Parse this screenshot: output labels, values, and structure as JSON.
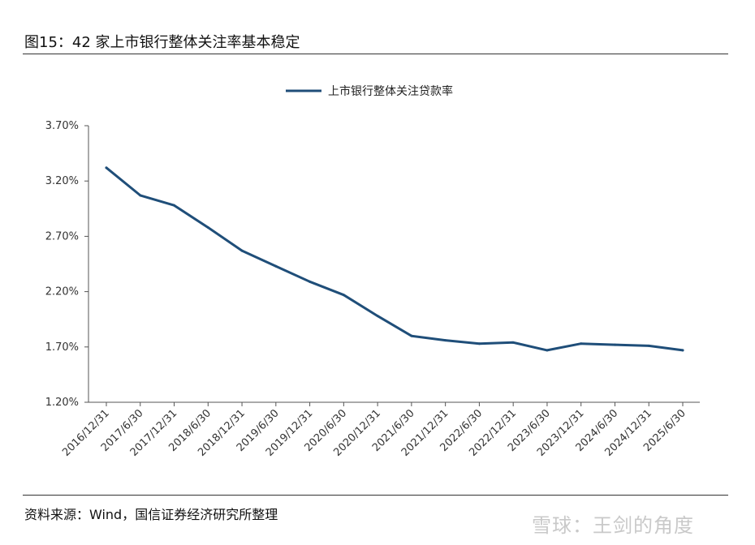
{
  "figure": {
    "title": "图15：42 家上市银行整体关注率基本稳定",
    "source": "资料来源：Wind，国信证券经济研究所整理",
    "watermark": "雪球：王剑的角度"
  },
  "chart_data": {
    "type": "line",
    "title": "",
    "xlabel": "",
    "ylabel": "",
    "categories": [
      "2016/12/31",
      "2017/6/30",
      "2017/12/31",
      "2018/6/30",
      "2018/12/31",
      "2019/6/30",
      "2019/12/31",
      "2020/6/30",
      "2020/12/31",
      "2021/6/30",
      "2021/12/31",
      "2022/6/30",
      "2022/12/31",
      "2023/6/30",
      "2023/12/31",
      "2024/6/30",
      "2024/12/31",
      "2025/6/30"
    ],
    "series": [
      {
        "name": "上市银行整体关注贷款率",
        "values": [
          3.32,
          3.07,
          2.98,
          2.78,
          2.57,
          2.43,
          2.29,
          2.17,
          1.98,
          1.8,
          1.76,
          1.73,
          1.74,
          1.67,
          1.73,
          1.72,
          1.71,
          1.67
        ],
        "color": "#1f4e79"
      }
    ],
    "yticks": [
      "1.20%",
      "1.70%",
      "2.20%",
      "2.70%",
      "3.20%",
      "3.70%"
    ],
    "ylim": [
      1.2,
      3.7
    ],
    "legend_position": "top-center",
    "grid": false
  }
}
